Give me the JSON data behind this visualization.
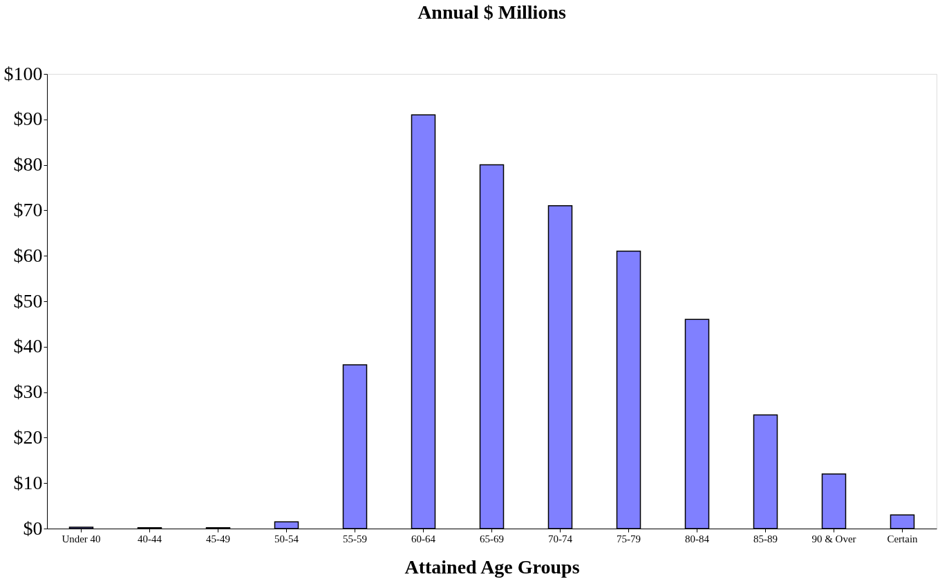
{
  "chart_data": {
    "type": "bar",
    "title": "Annual $ Millions",
    "xlabel": "Attained Age Groups",
    "categories": [
      "Under 40",
      "40-44",
      "45-49",
      "50-54",
      "55-59",
      "60-64",
      "65-69",
      "70-74",
      "75-79",
      "80-84",
      "85-89",
      "90 & Over",
      "Certain"
    ],
    "values": [
      0.3,
      0.2,
      0.2,
      1.5,
      36,
      91,
      80,
      71,
      61,
      46,
      25,
      12,
      3
    ],
    "color": "#8080ff",
    "ylim": [
      0,
      100
    ],
    "yticks": [
      {
        "value": 0,
        "label": "$0"
      },
      {
        "value": 10,
        "label": "$10"
      },
      {
        "value": 20,
        "label": "$20"
      },
      {
        "value": 30,
        "label": "$30"
      },
      {
        "value": 40,
        "label": "$40"
      },
      {
        "value": 50,
        "label": "$50"
      },
      {
        "value": 60,
        "label": "$60"
      },
      {
        "value": 70,
        "label": "$70"
      },
      {
        "value": 80,
        "label": "$80"
      },
      {
        "value": 90,
        "label": "$90"
      },
      {
        "value": 100,
        "label": "$100"
      }
    ],
    "grid": false
  }
}
